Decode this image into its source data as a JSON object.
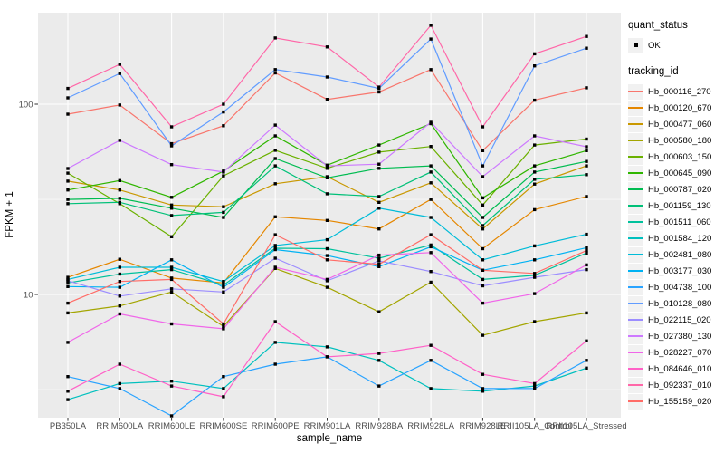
{
  "chart_data": {
    "type": "line",
    "title": "",
    "xlabel": "sample_name",
    "ylabel": "FPKM + 1",
    "y_scale": "log10",
    "y_ticks": [
      {
        "value": 100,
        "label": "100"
      },
      {
        "value": 10,
        "label": "10"
      }
    ],
    "y_minor_gridlines": [
      31.6,
      3.16
    ],
    "x_categories": [
      "PB350LA",
      "RRIM600LA",
      "RRIM600LE",
      "RRIM600SE",
      "RRIM600PE",
      "RRIM901LA",
      "RRIM928BA",
      "RRIM928LA",
      "RRIM928LE",
      "RRII105LA_Control",
      "RRII105LA_Stressed"
    ],
    "legend": {
      "quant_status_title": "quant_status",
      "quant_status_entries": [
        {
          "label": "OK",
          "marker": "black-point"
        }
      ],
      "tracking_id_title": "tracking_id"
    },
    "layout": {
      "legend_position": "right",
      "panel_bg": "#EBEBEB",
      "grid_color": "#FFFFFF",
      "tick_label_color": "#4D4D4D",
      "marker": "small-black-square"
    },
    "series": [
      {
        "tracking_id": "Hb_000116_270",
        "color": "#F8766D",
        "values": [
          88.6,
          99,
          62,
          77,
          146,
          106,
          116,
          152,
          57,
          105,
          122
        ]
      },
      {
        "tracking_id": "Hb_000120_670",
        "color": "#E58700",
        "values": [
          12.3,
          15.3,
          12.2,
          11.5,
          25.6,
          24.5,
          22.1,
          31.6,
          17.4,
          27.9,
          32.7
        ]
      },
      {
        "tracking_id": "Hb_000477_060",
        "color": "#C99800",
        "values": [
          39.4,
          35.4,
          29.5,
          28.9,
          38.2,
          41.6,
          30.5,
          38.6,
          22.1,
          38.0,
          47.4
        ]
      },
      {
        "tracking_id": "Hb_000580_180",
        "color": "#A3A500",
        "values": [
          8.0,
          8.7,
          10.3,
          6.8,
          13.7,
          10.9,
          8.1,
          11.6,
          6.1,
          7.2,
          8.0
        ]
      },
      {
        "tracking_id": "Hb_000603_150",
        "color": "#6BB100",
        "values": [
          43.4,
          30.0,
          20.1,
          42.0,
          57.2,
          46.0,
          56.0,
          59.9,
          29.5,
          61.0,
          65.6
        ]
      },
      {
        "tracking_id": "Hb_000645_090",
        "color": "#2FB600",
        "values": [
          35.4,
          39.7,
          32.4,
          44.5,
          68.1,
          47.8,
          61.0,
          79.0,
          32.2,
          47.4,
          57.0
        ]
      },
      {
        "tracking_id": "Hb_000787_020",
        "color": "#00BC51",
        "values": [
          31.6,
          32.0,
          28.4,
          25.4,
          51.8,
          41.0,
          46.0,
          47.4,
          25.4,
          44.0,
          50.0
        ]
      },
      {
        "tracking_id": "Hb_001159_130",
        "color": "#00C078",
        "values": [
          30.0,
          30.5,
          26.0,
          27.0,
          47.4,
          33.8,
          32.7,
          44.0,
          23.0,
          40.3,
          42.6
        ]
      },
      {
        "tracking_id": "Hb_001511_060",
        "color": "#00C19C",
        "values": [
          11.5,
          12.8,
          13.5,
          11.2,
          17.5,
          17.4,
          15.5,
          18.2,
          12.0,
          12.6,
          16.5
        ]
      },
      {
        "tracking_id": "Hb_001584_120",
        "color": "#00C0BE",
        "values": [
          2.8,
          3.4,
          3.5,
          3.2,
          5.6,
          5.3,
          4.5,
          3.2,
          3.1,
          3.3,
          4.1
        ]
      },
      {
        "tracking_id": "Hb_002481_080",
        "color": "#00BCD8",
        "values": [
          12.0,
          13.9,
          13.9,
          11.7,
          18.1,
          19.4,
          28.4,
          25.4,
          15.2,
          18.0,
          20.7
        ]
      },
      {
        "tracking_id": "Hb_003177_030",
        "color": "#00B2F3",
        "values": [
          11.0,
          10.9,
          15.2,
          10.9,
          17.2,
          16.0,
          14.0,
          17.8,
          13.4,
          15.2,
          17.6
        ]
      },
      {
        "tracking_id": "Hb_004738_100",
        "color": "#29A3FF",
        "values": [
          3.7,
          3.2,
          2.3,
          3.7,
          4.3,
          4.7,
          3.3,
          4.5,
          3.2,
          3.2,
          4.5
        ]
      },
      {
        "tracking_id": "Hb_010128_080",
        "color": "#619CFF",
        "values": [
          108,
          145,
          60.4,
          91,
          152,
          139,
          121,
          220,
          47.4,
          159,
          197
        ]
      },
      {
        "tracking_id": "Hb_022115_020",
        "color": "#9C8DFF",
        "values": [
          11.8,
          9.8,
          10.7,
          10.3,
          15.5,
          11.8,
          15.0,
          13.2,
          11.1,
          12.3,
          13.5
        ]
      },
      {
        "tracking_id": "Hb_027380_130",
        "color": "#CD79FF",
        "values": [
          45.9,
          64.6,
          48.1,
          44.0,
          77.6,
          47.4,
          48.4,
          80.3,
          41.6,
          68.1,
          59.7
        ]
      },
      {
        "tracking_id": "Hb_028227_070",
        "color": "#F066E9",
        "values": [
          5.6,
          7.9,
          7.0,
          6.6,
          13.9,
          12.0,
          16.1,
          16.6,
          9.0,
          10.1,
          14.3
        ]
      },
      {
        "tracking_id": "Hb_084646_010",
        "color": "#FF61C7",
        "values": [
          3.1,
          4.3,
          3.3,
          2.9,
          7.2,
          4.7,
          4.9,
          5.4,
          3.8,
          3.4,
          5.7
        ]
      },
      {
        "tracking_id": "Hb_092337_010",
        "color": "#FF67A8",
        "values": [
          121,
          162,
          76,
          100,
          223,
          200,
          123,
          260,
          76,
          184,
          227
        ]
      },
      {
        "tracking_id": "Hb_155159_020",
        "color": "#FF6C67",
        "values": [
          9.0,
          11.7,
          12.0,
          7.0,
          20.6,
          15.2,
          14.4,
          20.6,
          13.4,
          12.9,
          17.0
        ]
      }
    ]
  }
}
